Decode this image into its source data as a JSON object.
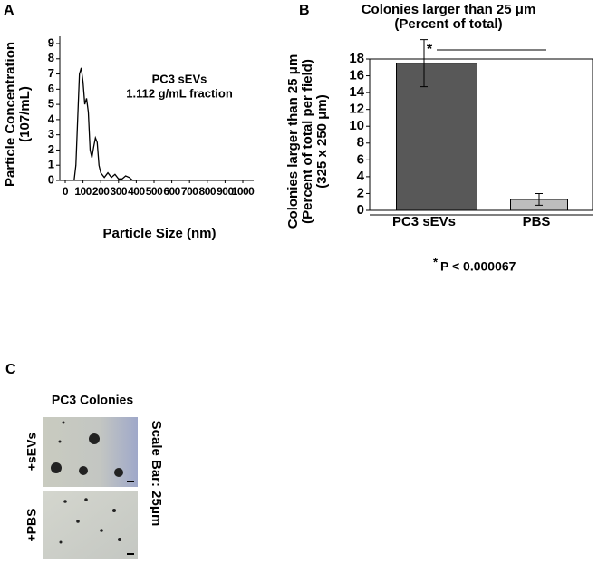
{
  "chart_data": [
    {
      "type": "line",
      "panel": "A",
      "annotation": [
        "PC3 sEVs",
        "1.112 g/mL fraction"
      ],
      "xlabel": "Particle Size (nm)",
      "ylabel": [
        "Particle Concentration",
        "(107/mL)"
      ],
      "x": [
        50,
        60,
        70,
        80,
        90,
        100,
        110,
        120,
        130,
        140,
        150,
        160,
        170,
        180,
        190,
        200,
        220,
        240,
        260,
        280,
        300,
        320,
        340,
        360,
        380,
        400
      ],
      "values": [
        0,
        1,
        4,
        7,
        7.4,
        6.5,
        5,
        5.4,
        4.5,
        2,
        1.5,
        2.2,
        2.8,
        2.5,
        1,
        0.5,
        0.2,
        0.5,
        0.2,
        0.4,
        0.1,
        0.1,
        0.3,
        0.2,
        0,
        0
      ],
      "color": "#000000",
      "xlim": [
        0,
        1000
      ],
      "xticks": [
        0,
        100,
        200,
        300,
        400,
        500,
        600,
        700,
        800,
        900,
        1000
      ],
      "ylim": [
        0,
        9
      ],
      "yticks": [
        0,
        1,
        2,
        3,
        4,
        5,
        6,
        7,
        8,
        9
      ]
    },
    {
      "type": "bar",
      "panel": "B",
      "title": [
        "Colonies larger than 25 μm",
        "(Percent of total)"
      ],
      "ylabel": [
        "Colonies larger than 25 μm",
        "(Percent of total per field)",
        "(325 x 250 μm)"
      ],
      "categories": [
        "PC3 sEVs",
        "PBS"
      ],
      "values": [
        17.5,
        1.3
      ],
      "errors": [
        2.8,
        0.7
      ],
      "colors": [
        "#585858",
        "#bdbdbd"
      ],
      "ylim": [
        0,
        18
      ],
      "yticks": [
        0,
        2,
        4,
        6,
        8,
        10,
        12,
        14,
        16,
        18
      ],
      "significance": "*",
      "footnote_marker": "*",
      "footnote": "P < 0.000067"
    }
  ],
  "images": {
    "panel": "C",
    "title": "PC3 Colonies",
    "rows": [
      "+sEVs",
      "+PBS"
    ],
    "scale_bar": "Scale Bar: 25μm"
  }
}
